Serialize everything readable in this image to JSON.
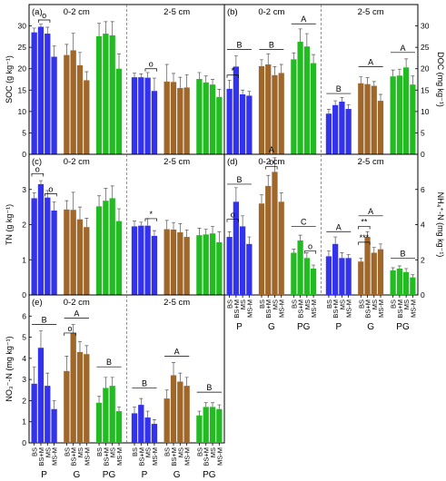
{
  "colors": {
    "BS": "#3333ee",
    "BS+M": "#3333ee",
    "MS": "#3333ee",
    "MS-M": "#3333ee",
    "P": "#3333ee",
    "G": "#a0672a",
    "PG": "#22bb22"
  },
  "chart_data": [
    {
      "panel_label": "(a)",
      "type": "bar",
      "ylabel": "SOC (g kg⁻¹)",
      "ylim": [
        0,
        35
      ],
      "yticks": [
        0,
        5,
        10,
        15,
        20,
        25,
        30
      ],
      "ylabel_side": "left",
      "yticks_side": "left",
      "depths": [
        "0-2 cm",
        "2-5 cm"
      ],
      "categories": [
        "BS",
        "BS+M",
        "MS",
        "MS-M"
      ],
      "groups": [
        "P",
        "G",
        "PG"
      ],
      "values": [
        [
          [
            28.5,
            29.8,
            28.2,
            22.8
          ],
          [
            23.2,
            24.3,
            20.8,
            17.3
          ],
          [
            27.6,
            28.2,
            27.8,
            20.0
          ]
        ],
        [
          [
            18.0,
            18.0,
            17.9,
            14.8
          ],
          [
            17.0,
            16.9,
            15.5,
            15.6
          ],
          [
            17.6,
            16.8,
            16.3,
            13.4
          ]
        ]
      ],
      "errors": [
        [
          [
            1.0,
            0.6,
            1.5,
            2.5
          ],
          [
            2.5,
            4.0,
            3.0,
            2.0
          ],
          [
            3.0,
            2.8,
            3.2,
            3.5
          ]
        ],
        [
          [
            1.0,
            0.8,
            1.2,
            3.0
          ],
          [
            4.0,
            2.0,
            2.5,
            3.0
          ],
          [
            1.5,
            1.5,
            1.2,
            1.8
          ]
        ]
      ],
      "sig": [
        {
          "depth": 0,
          "group": 0,
          "from": 1,
          "to": 2,
          "y": 31.4,
          "label": "o"
        },
        {
          "depth": 1,
          "group": 0,
          "from": 2,
          "to": 3,
          "y": 20.0,
          "label": "o"
        }
      ]
    },
    {
      "panel_label": "(b)",
      "type": "bar",
      "ylabel": "DOC (mg kg⁻¹)",
      "ylim": [
        0,
        35
      ],
      "yticks": [
        0,
        5,
        10,
        15,
        20,
        25,
        30
      ],
      "ylabel_side": "right",
      "yticks_side": "right",
      "depths": [
        "0-2 cm",
        "2-5 cm"
      ],
      "categories": [
        "BS",
        "BS+M",
        "MS",
        "MS-M"
      ],
      "groups": [
        "P",
        "G",
        "PG"
      ],
      "values": [
        [
          [
            15.3,
            20.5,
            14.0,
            13.7
          ],
          [
            20.6,
            21.0,
            18.5,
            19.0
          ],
          [
            22.2,
            26.3,
            25.2,
            21.3
          ]
        ],
        [
          [
            9.5,
            11.5,
            12.3,
            10.6
          ],
          [
            16.6,
            16.4,
            16.0,
            12.5
          ],
          [
            18.2,
            18.4,
            20.3,
            16.3
          ]
        ]
      ],
      "errors": [
        [
          [
            2.0,
            2.5,
            1.0,
            1.0
          ],
          [
            1.5,
            2.5,
            2.0,
            2.0
          ],
          [
            1.5,
            3.0,
            3.0,
            2.0
          ]
        ],
        [
          [
            1.0,
            1.0,
            1.0,
            1.0
          ],
          [
            1.5,
            1.5,
            1.0,
            1.5
          ],
          [
            1.5,
            1.5,
            2.0,
            2.0
          ]
        ]
      ],
      "sig": [
        {
          "depth": 0,
          "group": 0,
          "from": 0,
          "to": 1,
          "y": 18.5,
          "label": "*"
        },
        {
          "depth": 0,
          "group": 0,
          "from": 0,
          "to": 3,
          "y": 24.5,
          "label": "B"
        },
        {
          "depth": 0,
          "group": 1,
          "from": 0,
          "to": 3,
          "y": 24.5,
          "label": "B"
        },
        {
          "depth": 0,
          "group": 2,
          "from": 0,
          "to": 3,
          "y": 30.5,
          "label": "A"
        },
        {
          "depth": 1,
          "group": 0,
          "from": 0,
          "to": 3,
          "y": 14.2,
          "label": "B"
        },
        {
          "depth": 1,
          "group": 1,
          "from": 0,
          "to": 3,
          "y": 20.5,
          "label": "A"
        },
        {
          "depth": 1,
          "group": 2,
          "from": 0,
          "to": 3,
          "y": 23.8,
          "label": "A"
        }
      ]
    },
    {
      "panel_label": "(c)",
      "type": "bar",
      "ylabel": "TN (g kg⁻¹)",
      "ylim": [
        0,
        4
      ],
      "yticks": [
        0,
        1,
        2,
        3
      ],
      "ylabel_side": "left",
      "yticks_side": "left",
      "depths": [
        "0-2 cm",
        "2-5 cm"
      ],
      "categories": [
        "BS",
        "BS+M",
        "MS",
        "MS-M"
      ],
      "groups": [
        "P",
        "G",
        "PG"
      ],
      "values": [
        [
          [
            2.75,
            3.15,
            2.77,
            2.4
          ],
          [
            2.43,
            2.42,
            2.15,
            1.93
          ],
          [
            2.52,
            2.68,
            2.75,
            2.1
          ]
        ],
        [
          [
            1.95,
            1.97,
            1.97,
            1.68
          ],
          [
            1.87,
            1.86,
            1.78,
            1.65
          ],
          [
            1.7,
            1.72,
            1.75,
            1.5
          ]
        ]
      ],
      "errors": [
        [
          [
            0.15,
            0.1,
            0.2,
            0.25
          ],
          [
            0.25,
            0.5,
            0.35,
            0.25
          ],
          [
            0.3,
            0.35,
            0.35,
            0.35
          ]
        ],
        [
          [
            0.15,
            0.1,
            0.2,
            0.15
          ],
          [
            0.25,
            0.2,
            0.25,
            0.2
          ],
          [
            0.2,
            0.15,
            0.2,
            0.3
          ]
        ]
      ],
      "sig": [
        {
          "depth": 0,
          "group": 0,
          "from": 0,
          "to": 1,
          "y": 3.45,
          "label": "o"
        },
        {
          "depth": 0,
          "group": 0,
          "from": 2,
          "to": 3,
          "y": 2.88,
          "label": "o"
        },
        {
          "depth": 1,
          "group": 0,
          "from": 2,
          "to": 3,
          "y": 2.17,
          "label": "*"
        }
      ]
    },
    {
      "panel_label": "(d)",
      "type": "bar",
      "ylabel": "NH₄⁺-N (mg kg⁻¹)",
      "ylim": [
        0,
        8
      ],
      "yticks": [
        0,
        2,
        4,
        6
      ],
      "ylabel_side": "right",
      "yticks_side": "right",
      "depths": [
        "0-2 cm",
        "2-5 cm"
      ],
      "categories": [
        "BS",
        "BS+M",
        "MS",
        "MS-M"
      ],
      "groups": [
        "P",
        "G",
        "PG"
      ],
      "values": [
        [
          [
            3.3,
            5.3,
            3.9,
            2.9
          ],
          [
            5.2,
            6.2,
            7.0,
            5.3
          ],
          [
            2.4,
            3.1,
            2.1,
            1.5
          ]
        ],
        [
          [
            2.2,
            2.9,
            2.1,
            2.1
          ],
          [
            1.9,
            3.3,
            2.4,
            2.6
          ],
          [
            1.4,
            1.5,
            1.3,
            1.0
          ]
        ]
      ],
      "errors": [
        [
          [
            0.3,
            0.8,
            0.6,
            0.4
          ],
          [
            0.5,
            0.6,
            0.8,
            0.5
          ],
          [
            0.2,
            0.3,
            0.3,
            0.2
          ]
        ],
        [
          [
            0.3,
            0.4,
            0.3,
            0.2
          ],
          [
            0.2,
            0.3,
            0.3,
            0.3
          ],
          [
            0.15,
            0.15,
            0.2,
            0.15
          ]
        ]
      ],
      "sig": [
        {
          "depth": 0,
          "group": 0,
          "from": 0,
          "to": 1,
          "y": 4.3,
          "label": "o"
        },
        {
          "depth": 0,
          "group": 0,
          "from": 0,
          "to": 3,
          "y": 6.3,
          "label": "B"
        },
        {
          "depth": 0,
          "group": 1,
          "from": 1,
          "to": 2,
          "y": 7.3,
          "label": "o"
        },
        {
          "depth": 0,
          "group": 1,
          "from": 0,
          "to": 3,
          "y": 8.0,
          "label": "A"
        },
        {
          "depth": 0,
          "group": 2,
          "from": 0,
          "to": 3,
          "y": 3.9,
          "label": "C"
        },
        {
          "depth": 0,
          "group": 2,
          "from": 2,
          "to": 3,
          "y": 2.5,
          "label": "o"
        },
        {
          "depth": 1,
          "group": 0,
          "from": 0,
          "to": 3,
          "y": 3.6,
          "label": "A"
        },
        {
          "depth": 1,
          "group": 1,
          "from": 0,
          "to": 1,
          "y": 3.9,
          "label": "**"
        },
        {
          "depth": 1,
          "group": 1,
          "from": 0,
          "to": 1,
          "y": 3.0,
          "label": "***"
        },
        {
          "depth": 1,
          "group": 1,
          "from": 0,
          "to": 3,
          "y": 4.5,
          "label": "A"
        },
        {
          "depth": 1,
          "group": 2,
          "from": 0,
          "to": 3,
          "y": 2.1,
          "label": "B"
        }
      ]
    },
    {
      "panel_label": "(e)",
      "type": "bar",
      "ylabel": "NO₃⁻-N (mg kg⁻¹)",
      "ylim": [
        0,
        7
      ],
      "yticks": [
        0,
        1,
        2,
        3,
        4,
        5,
        6
      ],
      "ylabel_side": "left",
      "yticks_side": "left",
      "depths": [
        "0-2 cm",
        "2-5 cm"
      ],
      "categories": [
        "BS",
        "BS+M",
        "MS",
        "MS-M"
      ],
      "groups": [
        "P",
        "G",
        "PG"
      ],
      "values": [
        [
          [
            2.8,
            4.5,
            2.7,
            1.6
          ],
          [
            3.4,
            5.2,
            4.3,
            4.2
          ],
          [
            1.9,
            2.6,
            2.7,
            1.5
          ]
        ],
        [
          [
            1.4,
            1.8,
            1.2,
            0.9
          ],
          [
            2.1,
            3.2,
            2.9,
            2.7
          ],
          [
            1.3,
            1.7,
            1.7,
            1.6
          ]
        ]
      ],
      "errors": [
        [
          [
            0.8,
            0.8,
            0.6,
            0.4
          ],
          [
            0.7,
            0.4,
            0.5,
            0.4
          ],
          [
            0.3,
            0.5,
            0.4,
            0.2
          ]
        ],
        [
          [
            0.3,
            0.3,
            0.3,
            0.2
          ],
          [
            0.4,
            0.6,
            0.4,
            0.4
          ],
          [
            0.2,
            0.2,
            0.2,
            0.2
          ]
        ]
      ],
      "sig": [
        {
          "depth": 0,
          "group": 0,
          "from": 0,
          "to": 3,
          "y": 5.6,
          "label": "B"
        },
        {
          "depth": 0,
          "group": 1,
          "from": 0,
          "to": 1,
          "y": 5.2,
          "label": "o"
        },
        {
          "depth": 0,
          "group": 1,
          "from": 0,
          "to": 3,
          "y": 5.9,
          "label": "A"
        },
        {
          "depth": 0,
          "group": 2,
          "from": 0,
          "to": 3,
          "y": 3.6,
          "label": "B"
        },
        {
          "depth": 1,
          "group": 0,
          "from": 0,
          "to": 3,
          "y": 2.6,
          "label": "B"
        },
        {
          "depth": 1,
          "group": 1,
          "from": 0,
          "to": 3,
          "y": 4.1,
          "label": "A"
        },
        {
          "depth": 1,
          "group": 2,
          "from": 0,
          "to": 3,
          "y": 2.4,
          "label": "B"
        }
      ]
    }
  ]
}
